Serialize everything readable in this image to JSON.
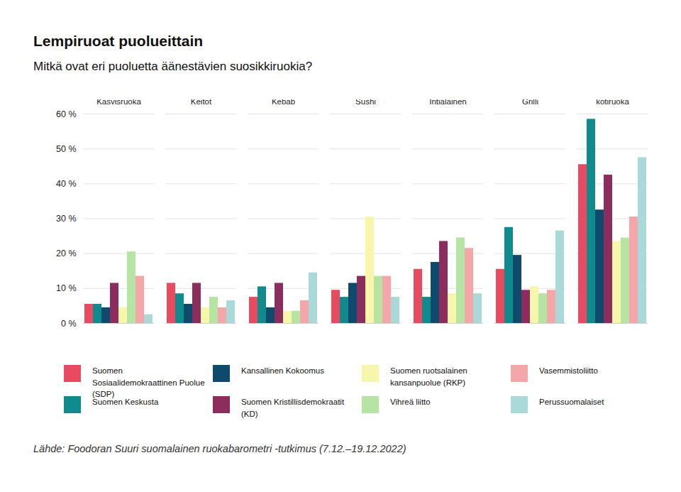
{
  "chart_data": {
    "type": "bar",
    "title": "Lempiruoat puolueittain",
    "subtitle": "Mitkä ovat eri puoluetta äänestävien suosikkiruokia?",
    "caption": "Lähde: Foodoran Suuri suomalainen ruokabarometri -tutkimus (7.12.–19.12.2022)",
    "categories": [
      "Kasvisruoka",
      "Keitot",
      "Kebab",
      "Sushi",
      "Intialainen",
      "Grilli",
      "Suomalainen kotiruoka"
    ],
    "series": [
      {
        "name": "Suomen Sosiaalidemokraattinen Puolue (SDP)",
        "color": "#e84a5f",
        "values": [
          5.5,
          11.5,
          7.5,
          9.5,
          15.5,
          15.5,
          45.5
        ]
      },
      {
        "name": "Suomen Keskusta",
        "color": "#0f8b8d",
        "values": [
          5.5,
          8.5,
          10.5,
          7.5,
          7.5,
          27.5,
          58.5
        ]
      },
      {
        "name": "Kansallinen Kokoomus",
        "color": "#0d4a6b",
        "values": [
          4.5,
          5.5,
          4.5,
          11.5,
          17.5,
          19.5,
          32.5
        ]
      },
      {
        "name": "Suomen Kristillisdemokraatit (KD)",
        "color": "#8c2d5e",
        "values": [
          11.5,
          11.5,
          11.5,
          13.5,
          23.5,
          9.5,
          42.5
        ]
      },
      {
        "name": "Suomen ruotsalainen kansanpuolue (RKP)",
        "color": "#f7f7ac",
        "values": [
          4.5,
          4.5,
          3.5,
          30.5,
          8.5,
          10.5,
          23.5
        ]
      },
      {
        "name": "Vihreä liitto",
        "color": "#b6e4a2",
        "values": [
          20.5,
          7.5,
          3.5,
          13.5,
          24.5,
          8.5,
          24.5
        ]
      },
      {
        "name": "Vasemmistoliitto",
        "color": "#f4a6a8",
        "values": [
          13.5,
          4.5,
          6.5,
          13.5,
          21.5,
          9.5,
          30.5
        ]
      },
      {
        "name": "Perussuomalaiset",
        "color": "#a9d9d9",
        "values": [
          2.5,
          6.5,
          14.5,
          7.5,
          8.5,
          26.5,
          47.5
        ]
      }
    ],
    "ylim": [
      0,
      60
    ],
    "yticks": [
      {
        "value": 0,
        "label": "0 %"
      },
      {
        "value": 10,
        "label": "10 %"
      },
      {
        "value": 20,
        "label": "20 %"
      },
      {
        "value": 30,
        "label": "30 %"
      },
      {
        "value": 40,
        "label": "40 %"
      },
      {
        "value": 50,
        "label": "50 %"
      },
      {
        "value": 60,
        "label": "60 %"
      }
    ],
    "grid": true,
    "legend": "bottom"
  }
}
